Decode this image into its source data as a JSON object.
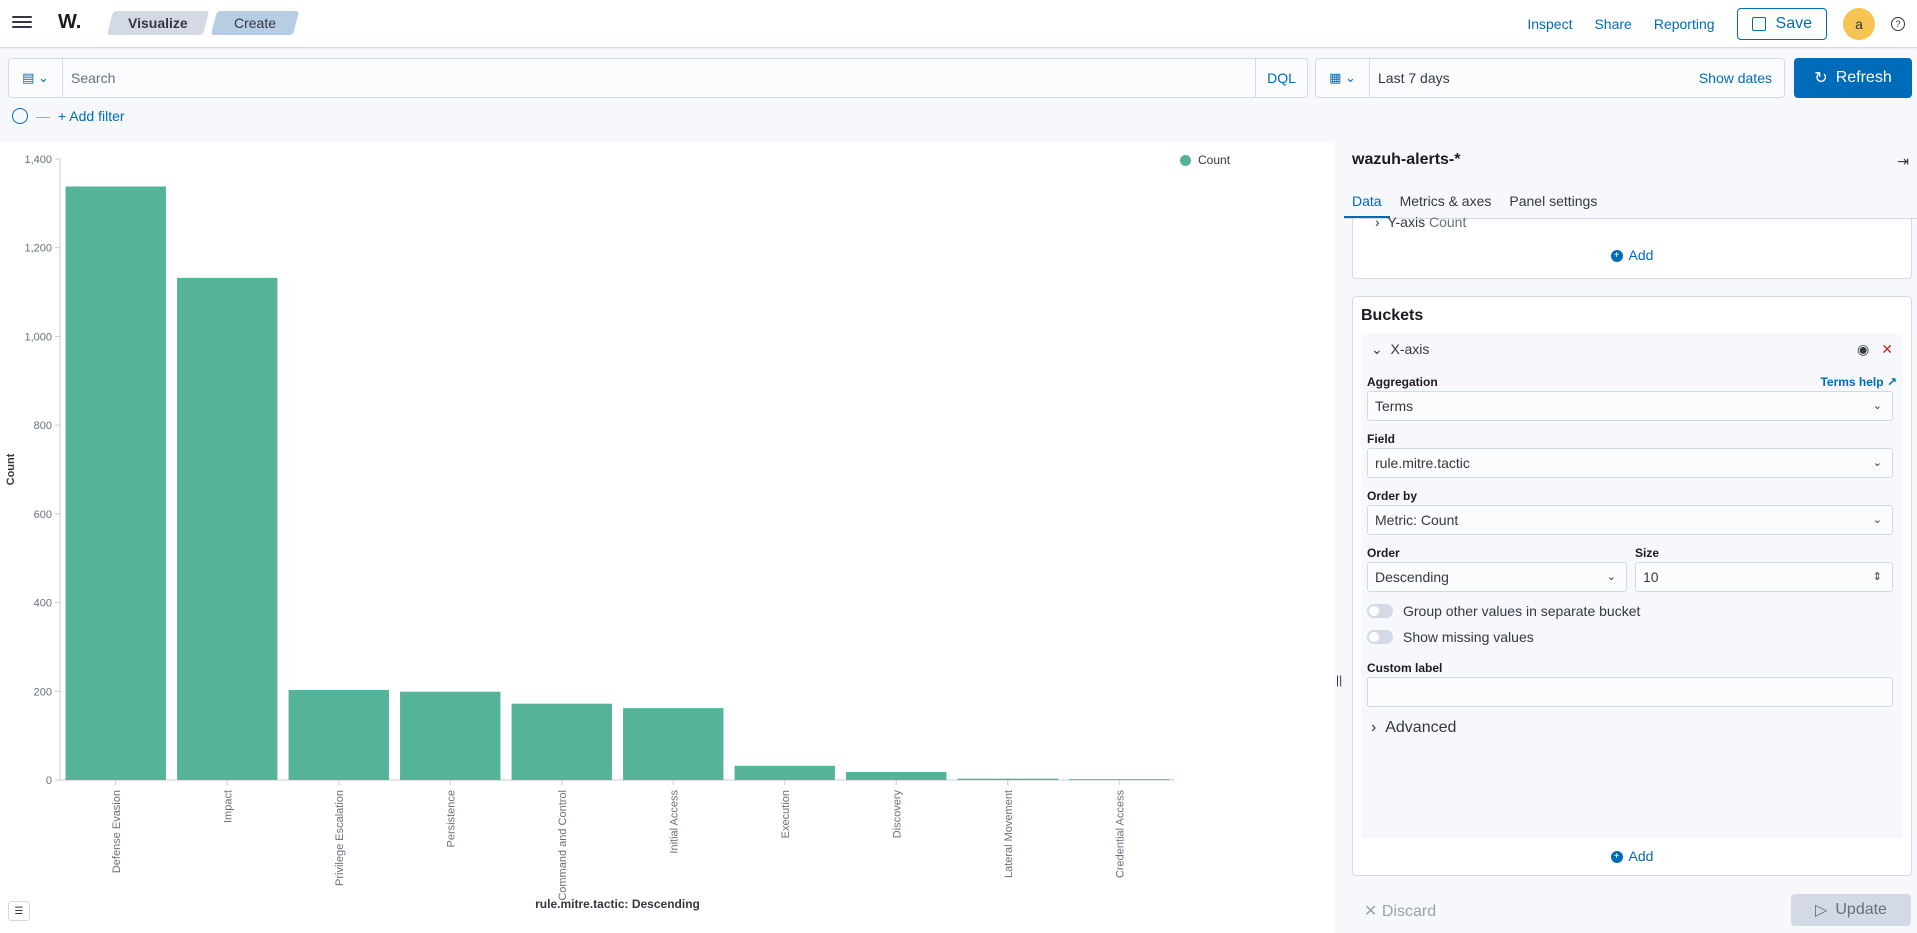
{
  "topbar": {
    "logo": "W.",
    "breadcrumbs": [
      "Visualize",
      "Create"
    ],
    "links": [
      "Inspect",
      "Share",
      "Reporting"
    ],
    "save_label": "Save",
    "avatar_letter": "a",
    "help_glyph": "?"
  },
  "querybar": {
    "search_placeholder": "Search",
    "dql_label": "DQL",
    "date_range": "Last 7 days",
    "show_dates": "Show dates",
    "refresh_label": "Refresh"
  },
  "filters": {
    "add_filter": "+ Add filter"
  },
  "chart_data": {
    "type": "bar",
    "categories": [
      "Defense Evasion",
      "Impact",
      "Privilege Escalation",
      "Persistence",
      "Command and Control",
      "Initial Access",
      "Execution",
      "Discovery",
      "Lateral Movement",
      "Credential Access"
    ],
    "series": [
      {
        "name": "Count",
        "values": [
          1338,
          1132,
          203,
          199,
          172,
          162,
          32,
          18,
          3,
          2
        ]
      }
    ],
    "ylabel": "Count",
    "xlabel": "rule.mitre.tactic: Descending",
    "ylim": [
      0,
      1400
    ],
    "yticks": [
      "0",
      "200",
      "400",
      "600",
      "800",
      "1,000",
      "1,200",
      "1,400"
    ],
    "color": "#54b399",
    "legend": "top-right",
    "grid": false
  },
  "sidebar": {
    "index_pattern": "wazuh-alerts-*",
    "tabs": [
      "Data",
      "Metrics & axes",
      "Panel settings"
    ],
    "metrics": {
      "yaxis_label": "Y-axis",
      "yaxis_value": "Count",
      "add_label": "Add"
    },
    "buckets": {
      "title": "Buckets",
      "xaxis_label": "X-axis",
      "aggregation_label": "Aggregation",
      "terms_help": "Terms help",
      "aggregation_value": "Terms",
      "field_label": "Field",
      "field_value": "rule.mitre.tactic",
      "orderby_label": "Order by",
      "orderby_value": "Metric: Count",
      "order_label": "Order",
      "order_value": "Descending",
      "size_label": "Size",
      "size_value": "10",
      "group_other": "Group other values in separate bucket",
      "show_missing": "Show missing values",
      "custom_label": "Custom label",
      "advanced": "Advanced",
      "add_label": "Add"
    },
    "footer": {
      "discard": "Discard",
      "update": "Update"
    }
  }
}
